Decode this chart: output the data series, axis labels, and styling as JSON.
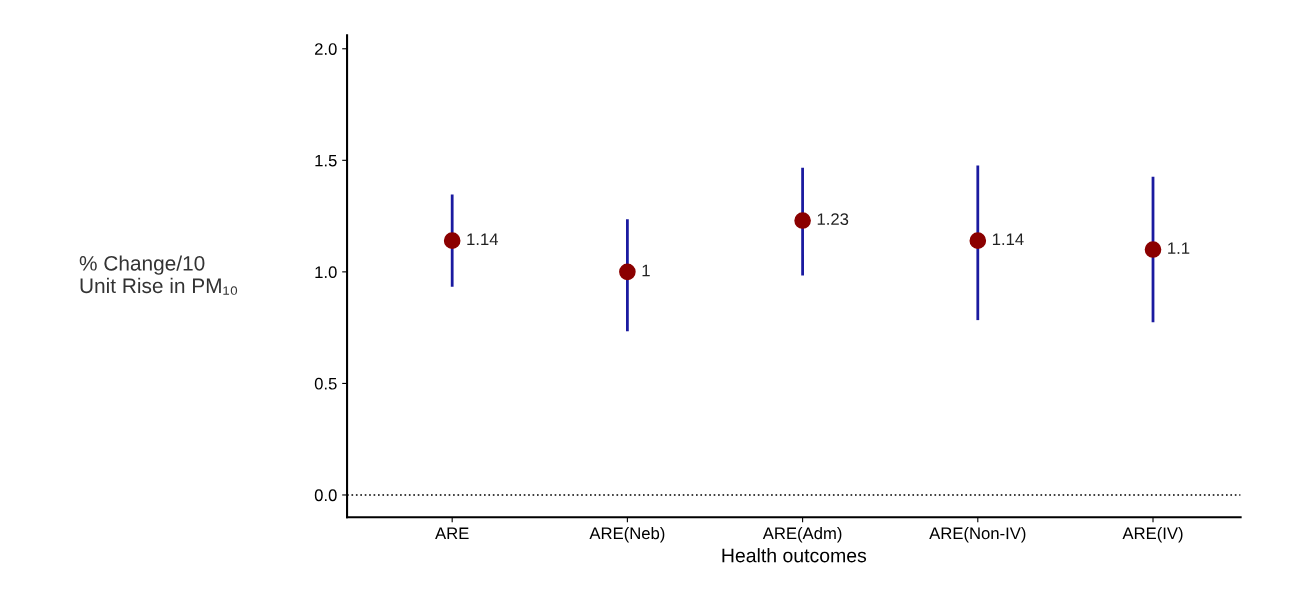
{
  "chart_data": {
    "type": "scatter",
    "xlabel": "Health outcomes",
    "ylabel": "% Change/10\nUnit Rise in PM₁₀",
    "categories": [
      "ARE",
      "ARE(Neb)",
      "ARE(Adm)",
      "ARE(Non-IV)",
      "ARE(IV)"
    ],
    "series": [
      {
        "color": "#8b0000",
        "values": [
          1.14,
          1,
          1.23,
          1.14,
          1.1
        ],
        "errors": [
          [
            0.94,
            1.34
          ],
          [
            0.74,
            1.23
          ],
          [
            0.99,
            1.46
          ],
          [
            0.79,
            1.47
          ],
          [
            0.78,
            1.42
          ]
        ]
      }
    ],
    "ylim": [
      -0.1,
      2.06
    ],
    "yticks": [
      {
        "value": 0,
        "label": "0.0"
      },
      0.5,
      {
        "value": 1,
        "label": "1.0"
      },
      1.5,
      {
        "value": 2,
        "label": "2.0"
      }
    ],
    "ref_lines": [
      {
        "axis": "y",
        "value": 0,
        "line_style": "dotted",
        "color": "#000000"
      }
    ],
    "data_labels": true,
    "grid": false,
    "marker": "circle"
  }
}
